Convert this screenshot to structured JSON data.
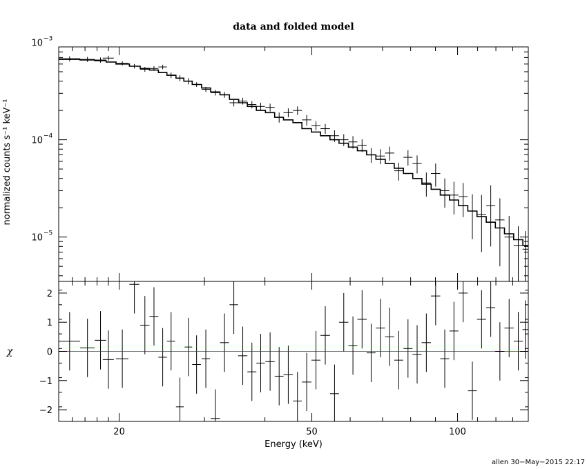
{
  "chart_data": [
    {
      "type": "scatter",
      "title": "data and folded model",
      "ylabel": "normalized counts s⁻¹ keV⁻¹",
      "xscale": "log",
      "yscale": "log",
      "xlim": [
        15,
        140
      ],
      "ylim": [
        3.5e-06,
        0.0009
      ],
      "y_tick_labels": [
        "10",
        "10",
        "10"
      ],
      "y_tick_exponents": [
        "−5",
        "−4",
        "−3"
      ],
      "y_tick_values": [
        1e-05,
        0.0001,
        0.001
      ],
      "series": [
        {
          "x": [
            15.8,
            17.2,
            18.3,
            19.0,
            20.3,
            21.5,
            22.6,
            23.6,
            24.6,
            25.6,
            26.7,
            27.8,
            28.9,
            30.2,
            31.6,
            33.0,
            34.5,
            36.0,
            37.6,
            39.2,
            41.0,
            42.8,
            44.7,
            46.7,
            48.8,
            51.0,
            53.3,
            55.7,
            58.2,
            60.8,
            63.5,
            66.3,
            69.3,
            72.4,
            75.6,
            79.0,
            82.5,
            86.2,
            90.1,
            94.1,
            98.3,
            102.7,
            107.3,
            112.1,
            117.1,
            122.3,
            127.8,
            133.5,
            138.0
          ],
          "xerr": [
            0.8,
            0.6,
            0.5,
            0.5,
            0.6,
            0.5,
            0.5,
            0.5,
            0.5,
            0.5,
            0.5,
            0.5,
            0.6,
            0.6,
            0.7,
            0.7,
            0.7,
            0.8,
            0.8,
            0.8,
            0.9,
            0.9,
            1.0,
            1.0,
            1.1,
            1.1,
            1.2,
            1.2,
            1.3,
            1.3,
            1.4,
            1.4,
            1.5,
            1.6,
            1.6,
            1.7,
            1.8,
            1.9,
            2.0,
            2.0,
            2.1,
            2.2,
            2.3,
            2.4,
            2.5,
            2.7,
            2.8,
            2.9,
            1.8
          ],
          "y": [
            0.00068,
            0.00067,
            0.00066,
            0.00069,
            0.00061,
            0.00057,
            0.00053,
            0.00054,
            0.00056,
            0.00046,
            0.00043,
            0.0004,
            0.00037,
            0.00033,
            0.000305,
            0.00029,
            0.00024,
            0.00025,
            0.00023,
            0.00022,
            0.000215,
            0.00017,
            0.00019,
            0.0002,
            0.00016,
            0.00014,
            0.00013,
            0.00011,
            0.0001,
            9.5e-05,
            8.8e-05,
            7e-05,
            6.8e-05,
            7.3e-05,
            4.8e-05,
            6.6e-05,
            5.7e-05,
            3.6e-05,
            4.5e-05,
            3e-05,
            2.7e-05,
            2.6e-05,
            1.85e-05,
            1.7e-05,
            2.1e-05,
            1.5e-05,
            1e-05,
            8.2e-06,
            7.5e-06
          ],
          "yerr_lo": [
            4e-05,
            4e-05,
            4e-05,
            4e-05,
            3e-05,
            3e-05,
            3e-05,
            3e-05,
            3e-05,
            3e-05,
            3e-05,
            3e-05,
            2e-05,
            2e-05,
            2e-05,
            2e-05,
            2e-05,
            2e-05,
            2e-05,
            2e-05,
            2e-05,
            2e-05,
            2e-05,
            2e-05,
            2e-05,
            1.5e-05,
            1.5e-05,
            1.5e-05,
            1.4e-05,
            1.4e-05,
            1.3e-05,
            1.2e-05,
            1.2e-05,
            1.2e-05,
            1e-05,
            1.2e-05,
            1.2e-05,
            1e-05,
            1.2e-05,
            1e-05,
            1e-05,
            1e-05,
            9e-06,
            1e-05,
            1.3e-05,
            1e-05,
            6.5e-06,
            4.7e-06,
            4e-06
          ],
          "yerr_hi": [
            4e-05,
            4e-05,
            4e-05,
            4e-05,
            3e-05,
            3e-05,
            3e-05,
            3e-05,
            3e-05,
            3e-05,
            3e-05,
            3e-05,
            2e-05,
            2e-05,
            2e-05,
            2e-05,
            2e-05,
            2e-05,
            2e-05,
            2e-05,
            2e-05,
            2e-05,
            2e-05,
            2e-05,
            2e-05,
            1.5e-05,
            1.5e-05,
            1.5e-05,
            1.4e-05,
            1.4e-05,
            1.3e-05,
            1.2e-05,
            1.2e-05,
            1.2e-05,
            1e-05,
            1.2e-05,
            1.2e-05,
            1e-05,
            1.2e-05,
            1e-05,
            1e-05,
            1e-05,
            9e-06,
            1e-05,
            1.3e-05,
            1e-05,
            6.5e-06,
            4.7e-06,
            4e-06
          ]
        },
        {
          "type": "step",
          "x_edges": [
            15.0,
            16.6,
            17.8,
            18.8,
            19.7,
            21.0,
            22.1,
            23.1,
            24.1,
            25.1,
            26.2,
            27.2,
            28.3,
            29.6,
            30.9,
            32.3,
            33.8,
            35.3,
            36.8,
            38.4,
            40.1,
            41.9,
            43.7,
            45.7,
            47.7,
            49.9,
            52.1,
            54.5,
            56.9,
            59.5,
            62.1,
            64.9,
            67.8,
            70.9,
            74.0,
            77.3,
            80.8,
            84.4,
            88.2,
            92.1,
            96.2,
            100.5,
            105.0,
            109.7,
            114.6,
            119.7,
            125.0,
            130.6,
            136.4,
            140.0
          ],
          "y": [
            0.00067,
            0.00066,
            0.00065,
            0.00063,
            0.0006,
            0.00057,
            0.00054,
            0.00052,
            0.00049,
            0.00046,
            0.00043,
            0.0004,
            0.00037,
            0.00034,
            0.00031,
            0.00029,
            0.00026,
            0.00024,
            0.00022,
            0.0002,
            0.00019,
            0.00017,
            0.00016,
            0.00015,
            0.00013,
            0.00012,
            0.00011,
            0.0001,
            9.2e-05,
            8.4e-05,
            7.7e-05,
            7e-05,
            6.3e-05,
            5.7e-05,
            5.1e-05,
            4.5e-05,
            4e-05,
            3.5e-05,
            3.1e-05,
            2.7e-05,
            2.4e-05,
            2.1e-05,
            1.85e-05,
            1.62e-05,
            1.42e-05,
            1.24e-05,
            1.08e-05,
            9.4e-06,
            8.2e-06
          ]
        }
      ]
    },
    {
      "type": "scatter",
      "xlabel": "Energy (keV)",
      "ylabel": "χ",
      "xscale": "log",
      "xlim": [
        15,
        140
      ],
      "ylim": [
        -2.4,
        2.4
      ],
      "x_ticks": [
        20,
        50,
        100
      ],
      "x_tick_labels": [
        "20",
        "50",
        "100"
      ],
      "y_ticks": [
        -2,
        -1,
        0,
        1,
        2
      ],
      "y_tick_labels": [
        "−2",
        "−1",
        "0",
        "1",
        "2"
      ],
      "zero_line_color": "#00cc00",
      "series": [
        {
          "x": [
            15.8,
            17.2,
            18.3,
            19.0,
            20.3,
            21.5,
            22.6,
            23.6,
            24.6,
            25.6,
            26.7,
            27.8,
            28.9,
            30.2,
            31.6,
            33.0,
            34.5,
            36.0,
            37.6,
            39.2,
            41.0,
            42.8,
            44.7,
            46.7,
            48.8,
            51.0,
            53.3,
            55.7,
            58.2,
            60.8,
            63.5,
            66.3,
            69.3,
            72.4,
            75.6,
            79.0,
            82.5,
            86.2,
            90.1,
            94.1,
            98.3,
            102.7,
            107.3,
            112.1,
            117.1,
            122.3,
            127.8,
            133.5,
            138.0
          ],
          "xerr": [
            0.8,
            0.6,
            0.5,
            0.5,
            0.6,
            0.5,
            0.5,
            0.5,
            0.5,
            0.5,
            0.5,
            0.5,
            0.6,
            0.6,
            0.7,
            0.7,
            0.7,
            0.8,
            0.8,
            0.8,
            0.9,
            0.9,
            1.0,
            1.0,
            1.1,
            1.1,
            1.2,
            1.2,
            1.3,
            1.3,
            1.4,
            1.4,
            1.5,
            1.6,
            1.6,
            1.7,
            1.8,
            1.9,
            2.0,
            2.0,
            2.1,
            2.2,
            2.3,
            2.4,
            2.5,
            2.7,
            2.8,
            2.9,
            1.8
          ],
          "y": [
            0.35,
            0.12,
            0.38,
            -0.28,
            -0.25,
            2.3,
            0.9,
            1.2,
            -0.2,
            0.35,
            -1.9,
            0.15,
            -0.45,
            -0.25,
            -2.3,
            0.3,
            1.6,
            -0.15,
            -0.7,
            -0.4,
            -0.35,
            -0.85,
            -0.8,
            -1.7,
            -1.05,
            -0.3,
            0.55,
            -1.45,
            1.0,
            0.2,
            1.1,
            -0.05,
            0.8,
            0.5,
            -0.3,
            0.1,
            -0.1,
            0.3,
            1.9,
            -0.25,
            0.7,
            2.0,
            -1.35,
            1.1,
            1.5,
            0.0,
            0.8,
            0.35,
            0.75
          ],
          "yerr": [
            1.0,
            1.0,
            1.0,
            1.0,
            1.0,
            1.0,
            1.0,
            1.0,
            1.0,
            1.0,
            1.0,
            1.0,
            1.0,
            1.0,
            1.0,
            1.0,
            1.0,
            1.0,
            1.0,
            1.0,
            1.0,
            1.0,
            1.0,
            1.0,
            1.0,
            1.0,
            1.0,
            1.0,
            1.0,
            1.0,
            1.0,
            1.0,
            1.0,
            1.0,
            1.0,
            1.0,
            1.0,
            1.0,
            1.0,
            1.0,
            1.0,
            1.0,
            1.0,
            1.0,
            1.0,
            1.0,
            1.0,
            1.0,
            1.0
          ]
        }
      ]
    }
  ],
  "footer": "allen 30−May−2015 22:17"
}
